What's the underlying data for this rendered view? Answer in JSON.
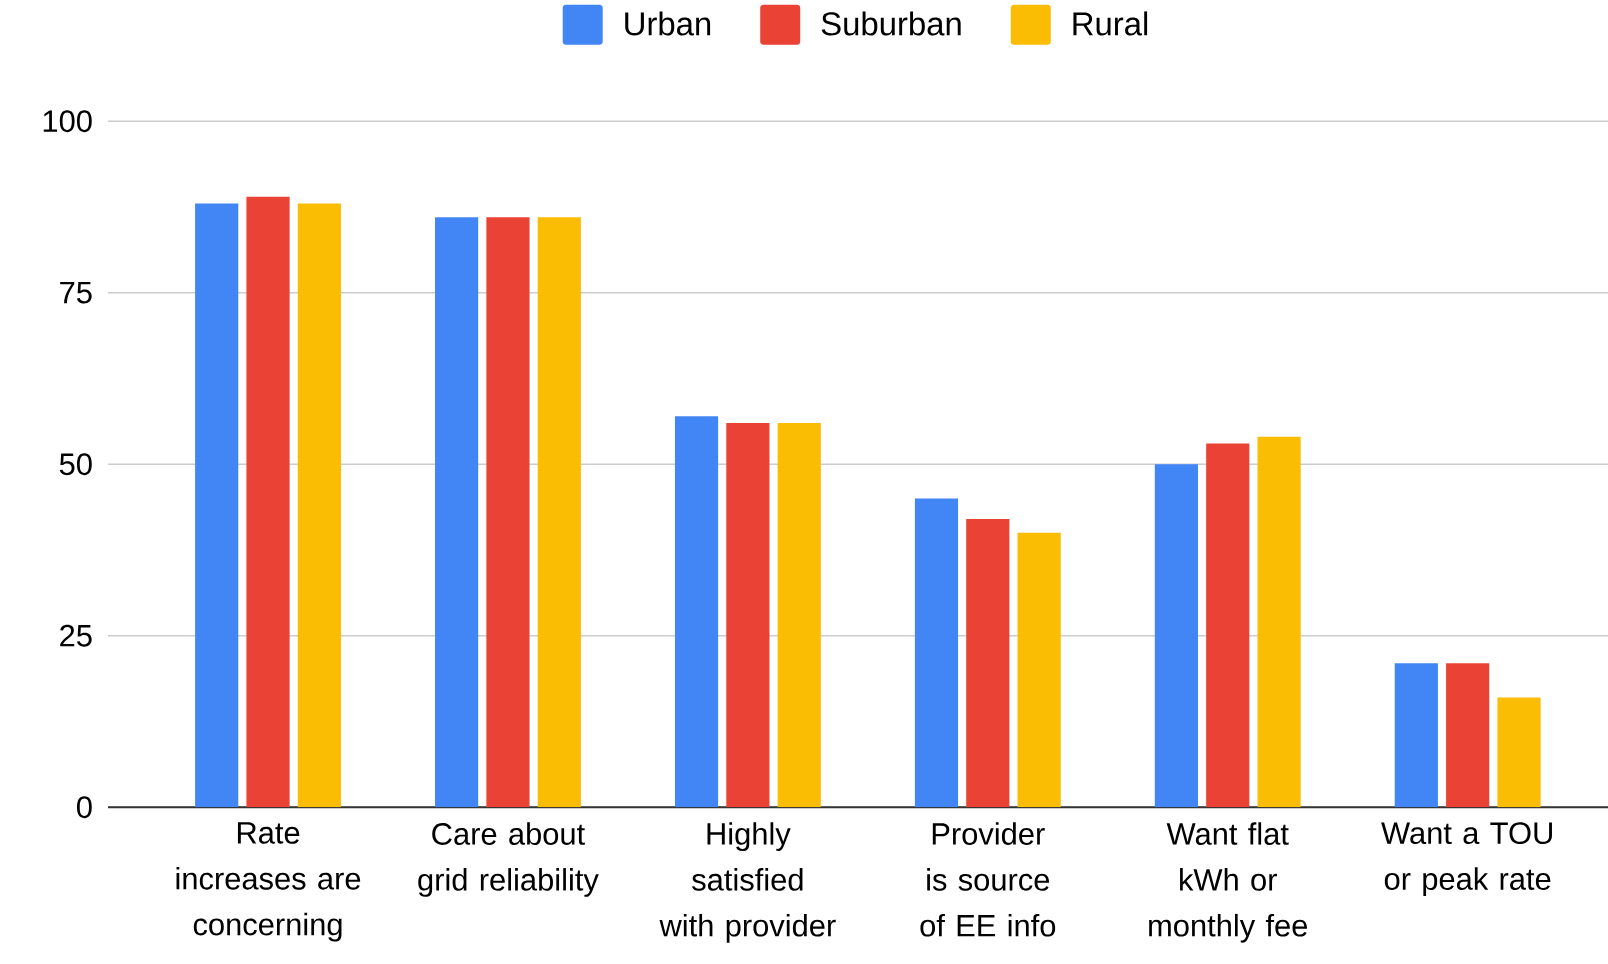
{
  "chart_data": {
    "type": "bar",
    "categories": [
      "Rate increases are concerning",
      "Care about grid reliability",
      "Highly satisfied with provider",
      "Provider is source of EE info",
      "Want flat kWh or monthly fee",
      "Want a TOU or peak rate"
    ],
    "series": [
      {
        "name": "Urban",
        "color": "#4285f4",
        "values": [
          88,
          86,
          57,
          45,
          50,
          21
        ]
      },
      {
        "name": "Suburban",
        "color": "#ea4335",
        "values": [
          89,
          86,
          56,
          42,
          53,
          21
        ]
      },
      {
        "name": "Rural",
        "color": "#fbbc04",
        "values": [
          88,
          86,
          56,
          40,
          54,
          16
        ]
      }
    ],
    "ylim": [
      0,
      100
    ],
    "yticks": [
      0,
      25,
      50,
      75,
      100
    ],
    "grid": "y",
    "legend": "top"
  }
}
